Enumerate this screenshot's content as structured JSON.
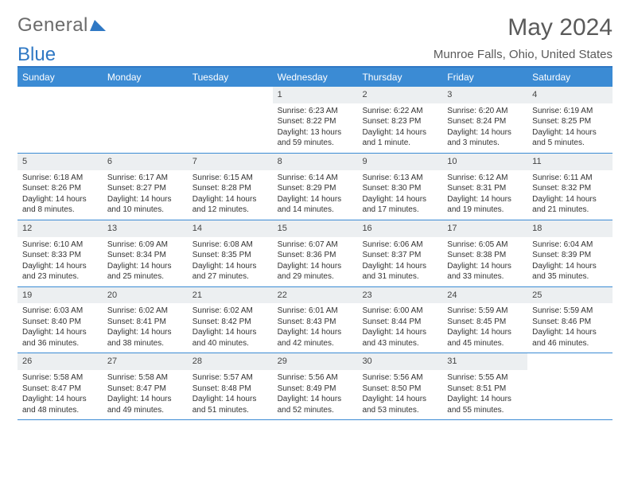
{
  "logo": {
    "text1": "General",
    "text2": "Blue"
  },
  "title": "May 2024",
  "location": "Munroe Falls, Ohio, United States",
  "header_bg": "#3b8bd4",
  "border_color": "#2f78c4",
  "daynum_bg": "#eceff1",
  "text_color": "#333333",
  "dayHeaders": [
    "Sunday",
    "Monday",
    "Tuesday",
    "Wednesday",
    "Thursday",
    "Friday",
    "Saturday"
  ],
  "weeks": [
    [
      null,
      null,
      null,
      {
        "n": "1",
        "sr": "Sunrise: 6:23 AM",
        "ss": "Sunset: 8:22 PM",
        "dl": "Daylight: 13 hours and 59 minutes."
      },
      {
        "n": "2",
        "sr": "Sunrise: 6:22 AM",
        "ss": "Sunset: 8:23 PM",
        "dl": "Daylight: 14 hours and 1 minute."
      },
      {
        "n": "3",
        "sr": "Sunrise: 6:20 AM",
        "ss": "Sunset: 8:24 PM",
        "dl": "Daylight: 14 hours and 3 minutes."
      },
      {
        "n": "4",
        "sr": "Sunrise: 6:19 AM",
        "ss": "Sunset: 8:25 PM",
        "dl": "Daylight: 14 hours and 5 minutes."
      }
    ],
    [
      {
        "n": "5",
        "sr": "Sunrise: 6:18 AM",
        "ss": "Sunset: 8:26 PM",
        "dl": "Daylight: 14 hours and 8 minutes."
      },
      {
        "n": "6",
        "sr": "Sunrise: 6:17 AM",
        "ss": "Sunset: 8:27 PM",
        "dl": "Daylight: 14 hours and 10 minutes."
      },
      {
        "n": "7",
        "sr": "Sunrise: 6:15 AM",
        "ss": "Sunset: 8:28 PM",
        "dl": "Daylight: 14 hours and 12 minutes."
      },
      {
        "n": "8",
        "sr": "Sunrise: 6:14 AM",
        "ss": "Sunset: 8:29 PM",
        "dl": "Daylight: 14 hours and 14 minutes."
      },
      {
        "n": "9",
        "sr": "Sunrise: 6:13 AM",
        "ss": "Sunset: 8:30 PM",
        "dl": "Daylight: 14 hours and 17 minutes."
      },
      {
        "n": "10",
        "sr": "Sunrise: 6:12 AM",
        "ss": "Sunset: 8:31 PM",
        "dl": "Daylight: 14 hours and 19 minutes."
      },
      {
        "n": "11",
        "sr": "Sunrise: 6:11 AM",
        "ss": "Sunset: 8:32 PM",
        "dl": "Daylight: 14 hours and 21 minutes."
      }
    ],
    [
      {
        "n": "12",
        "sr": "Sunrise: 6:10 AM",
        "ss": "Sunset: 8:33 PM",
        "dl": "Daylight: 14 hours and 23 minutes."
      },
      {
        "n": "13",
        "sr": "Sunrise: 6:09 AM",
        "ss": "Sunset: 8:34 PM",
        "dl": "Daylight: 14 hours and 25 minutes."
      },
      {
        "n": "14",
        "sr": "Sunrise: 6:08 AM",
        "ss": "Sunset: 8:35 PM",
        "dl": "Daylight: 14 hours and 27 minutes."
      },
      {
        "n": "15",
        "sr": "Sunrise: 6:07 AM",
        "ss": "Sunset: 8:36 PM",
        "dl": "Daylight: 14 hours and 29 minutes."
      },
      {
        "n": "16",
        "sr": "Sunrise: 6:06 AM",
        "ss": "Sunset: 8:37 PM",
        "dl": "Daylight: 14 hours and 31 minutes."
      },
      {
        "n": "17",
        "sr": "Sunrise: 6:05 AM",
        "ss": "Sunset: 8:38 PM",
        "dl": "Daylight: 14 hours and 33 minutes."
      },
      {
        "n": "18",
        "sr": "Sunrise: 6:04 AM",
        "ss": "Sunset: 8:39 PM",
        "dl": "Daylight: 14 hours and 35 minutes."
      }
    ],
    [
      {
        "n": "19",
        "sr": "Sunrise: 6:03 AM",
        "ss": "Sunset: 8:40 PM",
        "dl": "Daylight: 14 hours and 36 minutes."
      },
      {
        "n": "20",
        "sr": "Sunrise: 6:02 AM",
        "ss": "Sunset: 8:41 PM",
        "dl": "Daylight: 14 hours and 38 minutes."
      },
      {
        "n": "21",
        "sr": "Sunrise: 6:02 AM",
        "ss": "Sunset: 8:42 PM",
        "dl": "Daylight: 14 hours and 40 minutes."
      },
      {
        "n": "22",
        "sr": "Sunrise: 6:01 AM",
        "ss": "Sunset: 8:43 PM",
        "dl": "Daylight: 14 hours and 42 minutes."
      },
      {
        "n": "23",
        "sr": "Sunrise: 6:00 AM",
        "ss": "Sunset: 8:44 PM",
        "dl": "Daylight: 14 hours and 43 minutes."
      },
      {
        "n": "24",
        "sr": "Sunrise: 5:59 AM",
        "ss": "Sunset: 8:45 PM",
        "dl": "Daylight: 14 hours and 45 minutes."
      },
      {
        "n": "25",
        "sr": "Sunrise: 5:59 AM",
        "ss": "Sunset: 8:46 PM",
        "dl": "Daylight: 14 hours and 46 minutes."
      }
    ],
    [
      {
        "n": "26",
        "sr": "Sunrise: 5:58 AM",
        "ss": "Sunset: 8:47 PM",
        "dl": "Daylight: 14 hours and 48 minutes."
      },
      {
        "n": "27",
        "sr": "Sunrise: 5:58 AM",
        "ss": "Sunset: 8:47 PM",
        "dl": "Daylight: 14 hours and 49 minutes."
      },
      {
        "n": "28",
        "sr": "Sunrise: 5:57 AM",
        "ss": "Sunset: 8:48 PM",
        "dl": "Daylight: 14 hours and 51 minutes."
      },
      {
        "n": "29",
        "sr": "Sunrise: 5:56 AM",
        "ss": "Sunset: 8:49 PM",
        "dl": "Daylight: 14 hours and 52 minutes."
      },
      {
        "n": "30",
        "sr": "Sunrise: 5:56 AM",
        "ss": "Sunset: 8:50 PM",
        "dl": "Daylight: 14 hours and 53 minutes."
      },
      {
        "n": "31",
        "sr": "Sunrise: 5:55 AM",
        "ss": "Sunset: 8:51 PM",
        "dl": "Daylight: 14 hours and 55 minutes."
      },
      null
    ]
  ]
}
